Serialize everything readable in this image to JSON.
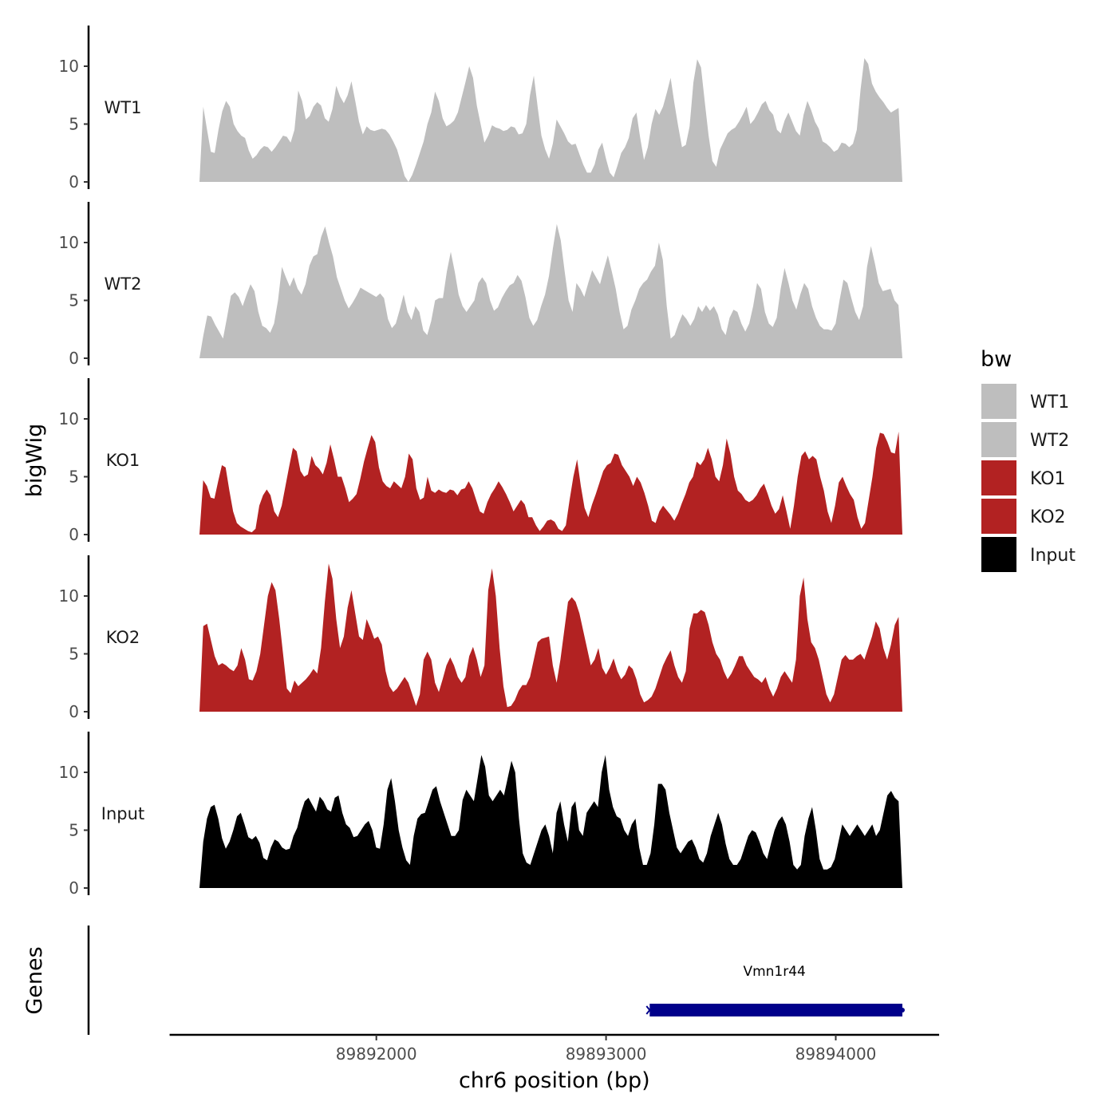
{
  "chart_data": {
    "type": "area",
    "ylabel": "bigWig",
    "xlabel": "chr6 position (bp)",
    "xlim": [
      89891100,
      89894450
    ],
    "data_x_range": [
      89891230,
      89894290
    ],
    "xticks": [
      89892000,
      89893000,
      89894000
    ],
    "xtick_labels": [
      "89892000",
      "89893000",
      "89894000"
    ],
    "ylim": [
      0,
      13.5
    ],
    "yticks": [
      0,
      5,
      10
    ],
    "ytick_labels": [
      "0",
      "5",
      "10"
    ],
    "tracks": [
      {
        "name": "WT1",
        "color": "#bebebe",
        "values": [
          0,
          6.5,
          4.5,
          2.6,
          2.5,
          4.5,
          6.1,
          7.0,
          6.5,
          5.0,
          4.4,
          4.0,
          3.8,
          2.7,
          2.0,
          2.3,
          2.8,
          3.1,
          3.0,
          2.6,
          3.0,
          3.5,
          4.0,
          3.9,
          3.4,
          4.5,
          7.9,
          7.0,
          5.4,
          5.7,
          6.5,
          6.9,
          6.6,
          5.5,
          5.2,
          6.3,
          8.3,
          7.4,
          6.8,
          7.5,
          8.7,
          7.0,
          5.2,
          4.1,
          4.8,
          4.5,
          4.4,
          4.5,
          4.6,
          4.5,
          4.1,
          3.5,
          2.8,
          1.7,
          0.5,
          0,
          0.6,
          1.5,
          2.5,
          3.5,
          5.0,
          6.0,
          7.8,
          7.0,
          5.5,
          4.8,
          5.0,
          5.3,
          6.0,
          7.3,
          8.6,
          10.0,
          9.0,
          6.6,
          5.0,
          3.4,
          4.0,
          4.9,
          4.7,
          4.6,
          4.4,
          4.5,
          4.8,
          4.7,
          4.1,
          4.2,
          5.0,
          7.5,
          9.2,
          6.5,
          4.0,
          2.8,
          2.0,
          3.3,
          5.4,
          4.8,
          4.2,
          3.5,
          3.2,
          3.3,
          2.4,
          1.5,
          0.8,
          0.8,
          1.5,
          2.8,
          3.4,
          2.0,
          0.8,
          0.4,
          1.4,
          2.5,
          3.0,
          3.8,
          5.5,
          6.0,
          3.8,
          1.9,
          3.0,
          5.0,
          6.3,
          5.8,
          6.5,
          7.7,
          9.0,
          6.8,
          4.8,
          3.0,
          3.2,
          4.8,
          8.6,
          10.6,
          9.9,
          6.9,
          4.0,
          1.8,
          1.3,
          2.8,
          3.5,
          4.2,
          4.5,
          4.7,
          5.2,
          5.8,
          6.5,
          5.0,
          5.4,
          6.0,
          6.7,
          7.0,
          6.2,
          5.8,
          4.5,
          4.2,
          5.3,
          6.0,
          5.2,
          4.4,
          4.0,
          5.8,
          7.0,
          6.2,
          5.2,
          4.6,
          3.5,
          3.3,
          3.0,
          2.6,
          2.8,
          3.4,
          3.3,
          3.0,
          3.3,
          4.5,
          8.0,
          10.7,
          10.2,
          8.5,
          7.8,
          7.3,
          6.9,
          6.4,
          6.0,
          6.2,
          6.4,
          0
        ]
      },
      {
        "name": "WT2",
        "color": "#bebebe",
        "values": [
          0,
          2.0,
          3.7,
          3.6,
          2.9,
          2.3,
          1.7,
          3.5,
          5.4,
          5.7,
          5.3,
          4.5,
          5.5,
          6.4,
          5.8,
          4.0,
          2.8,
          2.6,
          2.2,
          3.0,
          5.0,
          7.9,
          7.0,
          6.2,
          7.0,
          6.0,
          5.5,
          6.4,
          8.0,
          8.8,
          9.0,
          10.5,
          11.4,
          10.0,
          8.8,
          7.0,
          6.0,
          5.0,
          4.3,
          4.8,
          5.4,
          6.1,
          5.9,
          5.7,
          5.5,
          5.3,
          5.6,
          5.2,
          3.4,
          2.6,
          3.0,
          4.2,
          5.5,
          4.0,
          3.3,
          4.5,
          4.0,
          2.4,
          2.0,
          3.2,
          5.0,
          5.2,
          5.2,
          7.5,
          9.2,
          7.5,
          5.5,
          4.5,
          4.0,
          4.5,
          5.0,
          6.5,
          7.0,
          6.5,
          5.0,
          4.1,
          4.4,
          5.2,
          5.8,
          6.3,
          6.5,
          7.2,
          6.7,
          5.3,
          3.5,
          2.8,
          3.3,
          4.5,
          5.5,
          7.1,
          9.5,
          11.6,
          10.2,
          7.5,
          5.0,
          4.0,
          6.5,
          6.0,
          5.3,
          6.5,
          7.6,
          7.0,
          6.4,
          7.7,
          8.9,
          7.5,
          6.0,
          4.0,
          2.5,
          2.8,
          4.2,
          5.0,
          6.0,
          6.5,
          6.8,
          7.5,
          8.0,
          10.0,
          8.5,
          4.5,
          1.7,
          2.0,
          3.0,
          3.8,
          3.4,
          2.8,
          3.4,
          4.5,
          4.0,
          4.6,
          4.1,
          4.5,
          3.8,
          2.5,
          2.0,
          3.5,
          4.2,
          4.0,
          3.0,
          2.3,
          3.0,
          4.5,
          6.5,
          6.0,
          4.0,
          3.0,
          2.7,
          3.5,
          6.0,
          7.8,
          6.5,
          5.0,
          4.2,
          5.5,
          6.5,
          6.0,
          4.5,
          3.5,
          2.8,
          2.5,
          2.5,
          2.4,
          3.0,
          5.0,
          6.8,
          6.5,
          5.2,
          4.0,
          3.3,
          4.5,
          7.9,
          9.7,
          8.2,
          6.5,
          5.8,
          5.9,
          6.0,
          5.0,
          4.6,
          0
        ]
      },
      {
        "name": "KO1",
        "color": "#b22222",
        "values": [
          0,
          4.7,
          4.2,
          3.2,
          3.1,
          4.6,
          6.0,
          5.8,
          3.8,
          2.0,
          1.0,
          0.7,
          0.5,
          0.3,
          0.2,
          0.5,
          2.5,
          3.4,
          3.9,
          3.4,
          2.0,
          1.5,
          2.5,
          4.2,
          5.9,
          7.5,
          7.2,
          5.5,
          5.0,
          5.2,
          6.8,
          6.0,
          5.7,
          5.2,
          6.2,
          7.8,
          6.5,
          5.0,
          5.0,
          4.0,
          2.8,
          3.1,
          3.5,
          4.8,
          6.3,
          7.5,
          8.6,
          8.0,
          5.8,
          4.6,
          4.2,
          4.0,
          4.6,
          4.3,
          4.0,
          5.0,
          7.0,
          6.5,
          4.0,
          3.0,
          3.2,
          5.0,
          3.8,
          3.6,
          3.9,
          3.7,
          3.6,
          3.9,
          3.8,
          3.4,
          3.9,
          4.0,
          4.6,
          4.0,
          3.0,
          2.0,
          1.8,
          2.8,
          3.5,
          4.0,
          4.6,
          4.1,
          3.5,
          2.8,
          2.0,
          2.5,
          3.0,
          2.6,
          1.5,
          1.5,
          0.8,
          0.3,
          0.7,
          1.2,
          1.3,
          1.1,
          0.5,
          0.3,
          0.8,
          3.0,
          5.0,
          6.5,
          4.2,
          2.3,
          1.5,
          2.6,
          3.5,
          4.5,
          5.5,
          6.0,
          6.2,
          7.0,
          6.9,
          6.0,
          5.5,
          5.0,
          4.2,
          5.0,
          4.5,
          3.6,
          2.5,
          1.2,
          1.0,
          2.0,
          2.5,
          2.1,
          1.7,
          1.2,
          1.8,
          2.7,
          3.5,
          4.5,
          5.0,
          6.3,
          6.0,
          6.5,
          7.5,
          6.5,
          5.0,
          4.6,
          6.0,
          8.3,
          7.0,
          5.0,
          3.8,
          3.5,
          3.0,
          2.8,
          3.0,
          3.4,
          4.0,
          4.4,
          3.5,
          2.5,
          1.8,
          2.2,
          3.4,
          2.0,
          0.5,
          2.5,
          5.0,
          6.8,
          7.2,
          6.5,
          6.8,
          6.5,
          5.0,
          3.8,
          2.0,
          1.0,
          2.5,
          4.5,
          5.0,
          4.2,
          3.5,
          3.0,
          1.5,
          0.5,
          1.0,
          3.0,
          5.0,
          7.5,
          8.8,
          8.7,
          8.0,
          7.1,
          7.0,
          8.9,
          0
        ]
      },
      {
        "name": "KO2",
        "color": "#b22222",
        "values": [
          0,
          7.4,
          7.6,
          6.2,
          4.8,
          4.0,
          4.2,
          4.0,
          3.7,
          3.5,
          4.0,
          5.5,
          4.5,
          2.8,
          2.7,
          3.5,
          5.0,
          7.5,
          10.0,
          11.2,
          10.5,
          8.0,
          5.0,
          2.0,
          1.6,
          2.7,
          2.2,
          2.5,
          2.8,
          3.2,
          3.7,
          3.3,
          5.5,
          9.5,
          12.8,
          11.5,
          8.0,
          5.5,
          6.5,
          9.0,
          10.5,
          8.5,
          6.5,
          6.2,
          8.0,
          7.2,
          6.3,
          6.5,
          5.8,
          3.5,
          2.2,
          1.7,
          2.0,
          2.5,
          3.0,
          2.5,
          1.5,
          0.5,
          1.5,
          4.5,
          5.2,
          4.5,
          2.5,
          1.7,
          2.8,
          4.0,
          4.7,
          4.0,
          3.0,
          2.5,
          3.0,
          4.8,
          5.6,
          4.5,
          3.0,
          4.0,
          10.5,
          12.4,
          10.0,
          5.5,
          2.2,
          0.4,
          0.5,
          1.0,
          1.8,
          2.3,
          2.3,
          3.0,
          4.5,
          6.0,
          6.3,
          6.4,
          6.5,
          4.0,
          2.5,
          4.5,
          7.0,
          9.5,
          9.9,
          9.5,
          8.5,
          7.0,
          5.5,
          4.0,
          4.5,
          5.5,
          3.8,
          3.2,
          3.8,
          4.6,
          3.5,
          2.8,
          3.2,
          4.0,
          3.7,
          2.8,
          1.5,
          0.8,
          1.0,
          1.3,
          2.0,
          3.0,
          4.0,
          4.7,
          5.3,
          4.0,
          3.0,
          2.5,
          3.5,
          7.2,
          8.5,
          8.5,
          8.8,
          8.6,
          7.5,
          6.0,
          5.0,
          4.5,
          3.5,
          2.8,
          3.3,
          4.0,
          4.8,
          4.8,
          4.0,
          3.5,
          3.0,
          2.8,
          2.5,
          3.0,
          2.0,
          1.3,
          2.0,
          3.0,
          3.5,
          3.0,
          2.5,
          4.5,
          10.0,
          11.6,
          8.0,
          6.0,
          5.5,
          4.5,
          3.0,
          1.5,
          0.8,
          1.5,
          3.0,
          4.5,
          4.9,
          4.5,
          4.5,
          4.8,
          5.0,
          4.5,
          5.5,
          6.5,
          7.8,
          7.2,
          5.5,
          4.5,
          5.8,
          7.5,
          8.2,
          0
        ]
      },
      {
        "name": "Input",
        "color": "#000000",
        "values": [
          0,
          4.0,
          6.0,
          7.0,
          7.2,
          6.0,
          4.3,
          3.4,
          4.0,
          5.0,
          6.2,
          6.5,
          5.5,
          4.4,
          4.2,
          4.5,
          3.9,
          2.6,
          2.4,
          3.5,
          4.2,
          4.0,
          3.5,
          3.3,
          3.4,
          4.5,
          5.2,
          6.5,
          7.5,
          7.8,
          7.2,
          6.6,
          7.9,
          7.5,
          6.8,
          6.6,
          7.8,
          8.0,
          6.5,
          5.5,
          5.2,
          4.4,
          4.5,
          5.0,
          5.5,
          5.8,
          5.0,
          3.5,
          3.4,
          5.5,
          8.5,
          9.5,
          7.5,
          5.0,
          3.5,
          2.4,
          2.0,
          4.5,
          6.0,
          6.4,
          6.5,
          7.5,
          8.5,
          8.8,
          7.5,
          6.5,
          5.5,
          4.5,
          4.5,
          5.0,
          7.6,
          8.5,
          8.0,
          7.5,
          9.5,
          11.5,
          10.5,
          8.0,
          7.5,
          8.0,
          8.5,
          8.0,
          9.5,
          11.0,
          10.0,
          6.0,
          3.0,
          2.2,
          2.0,
          3.0,
          4.0,
          5.0,
          5.5,
          4.5,
          3.0,
          6.5,
          7.5,
          5.5,
          4.0,
          7.0,
          7.5,
          5.0,
          4.5,
          6.5,
          7.0,
          7.5,
          7.0,
          10.0,
          11.5,
          8.5,
          7.0,
          6.2,
          6.0,
          5.0,
          4.5,
          5.5,
          6.0,
          3.5,
          2.0,
          2.0,
          3.0,
          5.5,
          9.0,
          9.0,
          8.5,
          6.5,
          5.0,
          3.5,
          3.0,
          3.5,
          4.0,
          4.2,
          3.5,
          2.5,
          2.2,
          3.0,
          4.5,
          5.5,
          6.5,
          5.5,
          3.8,
          2.5,
          2.0,
          2.0,
          2.5,
          3.5,
          4.5,
          5.0,
          4.8,
          4.0,
          3.0,
          2.5,
          3.8,
          5.0,
          5.8,
          6.2,
          5.5,
          4.0,
          2.0,
          1.6,
          2.0,
          4.5,
          6.0,
          7.0,
          5.0,
          2.5,
          1.6,
          1.6,
          1.8,
          2.5,
          4.0,
          5.5,
          5.0,
          4.5,
          5.0,
          5.5,
          5.0,
          4.5,
          5.0,
          5.5,
          4.5,
          5.0,
          6.5,
          8.0,
          8.4,
          7.8,
          7.5,
          0
        ]
      }
    ],
    "legend": {
      "title": "bw",
      "position": "right",
      "entries": [
        {
          "label": "WT1",
          "color": "#bebebe"
        },
        {
          "label": "WT2",
          "color": "#bebebe"
        },
        {
          "label": "KO1",
          "color": "#b22222"
        },
        {
          "label": "KO2",
          "color": "#b22222"
        },
        {
          "label": "Input",
          "color": "#000000"
        }
      ]
    },
    "genes_panel": {
      "title": "Genes",
      "genes": [
        {
          "name": "Vmn1r44",
          "start": 89893190,
          "end": 89894290,
          "color": "#00008b",
          "strand": "-"
        }
      ]
    }
  }
}
